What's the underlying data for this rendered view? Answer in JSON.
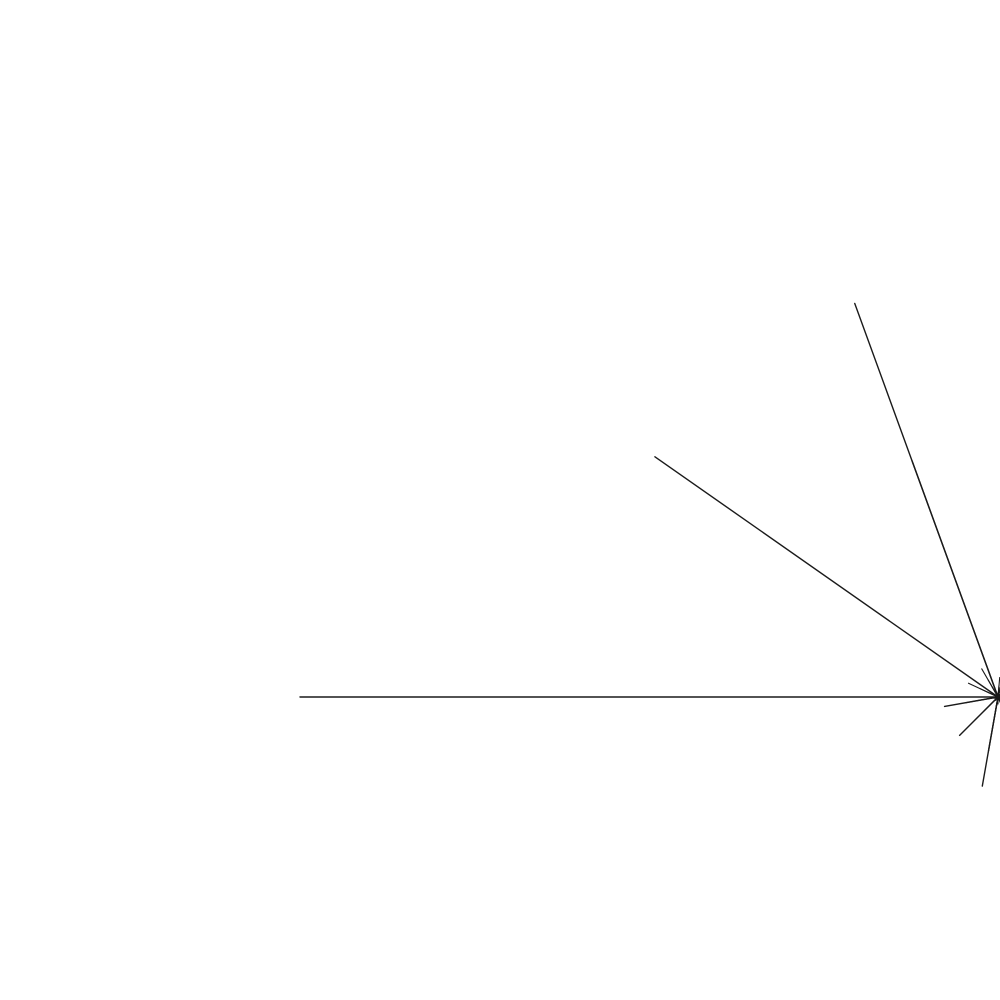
{
  "background_color": "#ffffff",
  "stroke_color": "#1a1a1a",
  "fractal": {
    "kind": "binary-branching-tree",
    "recursion_depth": 13,
    "branches": [
      {
        "name": "left-branch",
        "length_ratio": 0.6,
        "angle_deg": 70
      },
      {
        "name": "right-branch",
        "length_ratio": 0.6,
        "angle_deg": 35
      }
    ],
    "trunk_direction": "horizontal-leftward"
  }
}
